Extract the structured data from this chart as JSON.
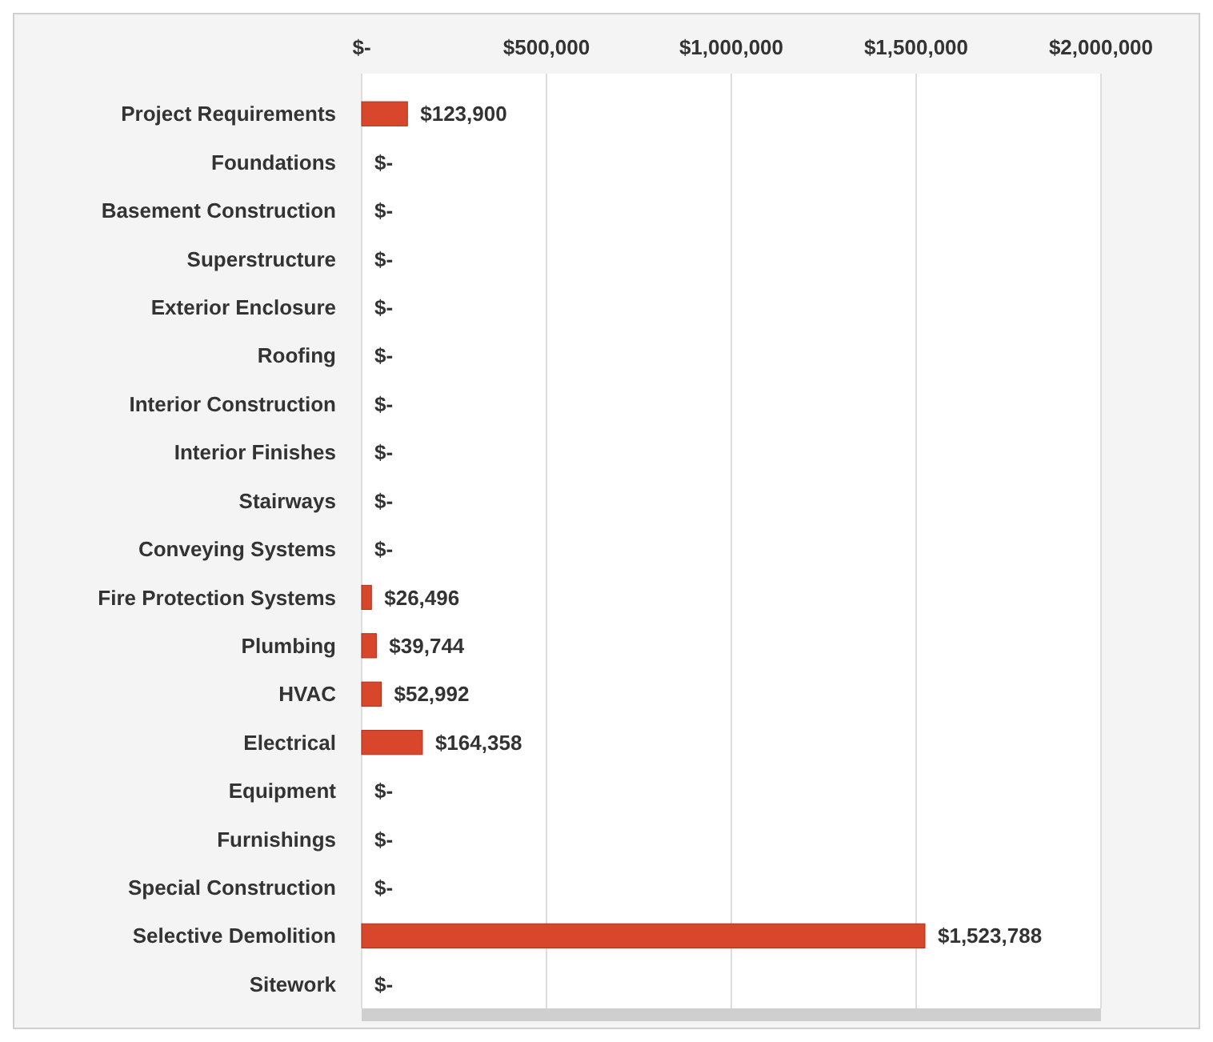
{
  "chart_data": {
    "type": "bar",
    "orientation": "horizontal",
    "categories": [
      "Project Requirements",
      "Foundations",
      "Basement Construction",
      "Superstructure",
      "Exterior Enclosure",
      "Roofing",
      "Interior Construction",
      "Interior Finishes",
      "Stairways",
      "Conveying Systems",
      "Fire Protection Systems",
      "Plumbing",
      "HVAC",
      "Electrical",
      "Equipment",
      "Furnishings",
      "Special Construction",
      "Selective Demolition",
      "Sitework"
    ],
    "values": [
      123900,
      0,
      0,
      0,
      0,
      0,
      0,
      0,
      0,
      0,
      26496,
      39744,
      52992,
      164358,
      0,
      0,
      0,
      1523788,
      0
    ],
    "value_labels": [
      "$123,900",
      "$-",
      "$-",
      "$-",
      "$-",
      "$-",
      "$-",
      "$-",
      "$-",
      "$-",
      "$26,496",
      "$39,744",
      "$52,992",
      "$164,358",
      "$-",
      "$-",
      "$-",
      "$1,523,788",
      "$-"
    ],
    "color": "#d8472b",
    "xlim": [
      0,
      2000000
    ],
    "xticks": [
      {
        "value": 0,
        "label": "$-"
      },
      {
        "value": 500000,
        "label": "$500,000"
      },
      {
        "value": 1000000,
        "label": "$1,000,000"
      },
      {
        "value": 1500000,
        "label": "$1,500,000"
      },
      {
        "value": 2000000,
        "label": "$2,000,000"
      }
    ],
    "grid": "x"
  }
}
